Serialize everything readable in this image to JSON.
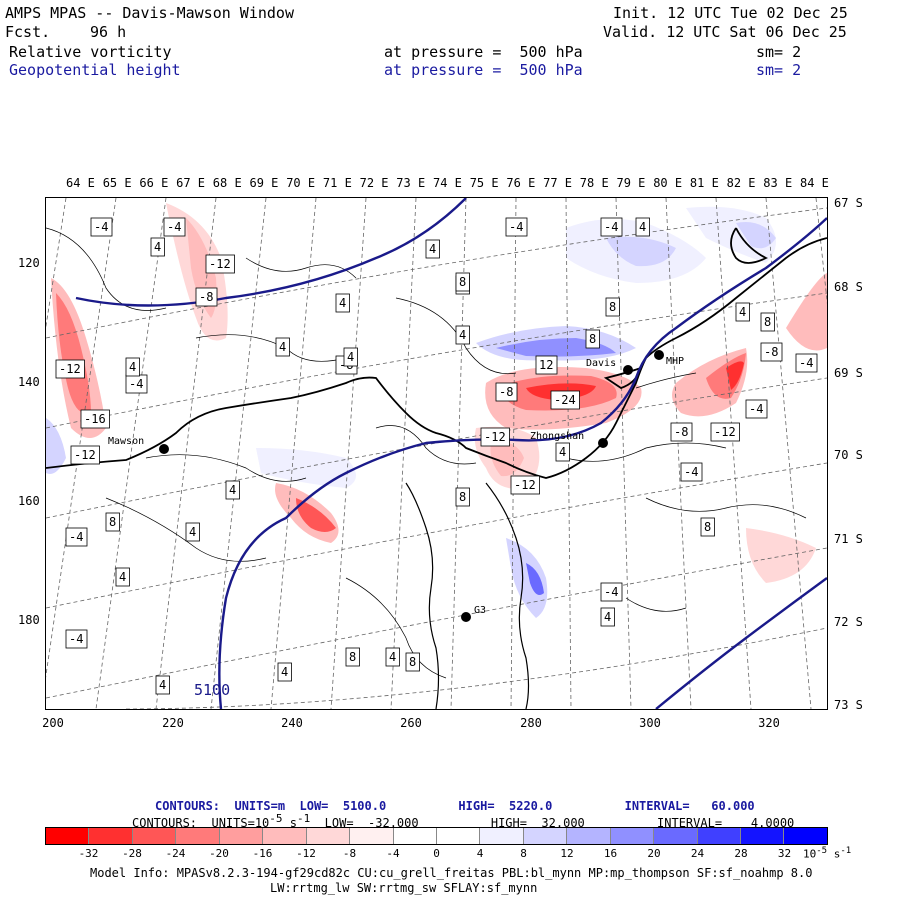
{
  "header": {
    "title": "AMPS MPAS -- Davis-Mawson Window",
    "fcst_label": "Fcst.",
    "fcst_value": "96 h",
    "init": "Init. 12 UTC Tue 02 Dec 25",
    "valid": "Valid. 12 UTC Sat 06 Dec 25",
    "field1": "Relative vorticity",
    "field1_level": "at pressure =  500 hPa",
    "field1_sm": "sm= 2",
    "field2": "Geopotential height",
    "field2_level": "at pressure =  500 hPa",
    "field2_sm": "sm= 2"
  },
  "map": {
    "lon_labels": [
      "64 E",
      "65 E",
      "66 E",
      "67 E",
      "68 E",
      "69 E",
      "70 E",
      "71 E",
      "72 E",
      "73 E",
      "74 E",
      "75 E",
      "76 E",
      "77 E",
      "78 E",
      "79 E",
      "80 E",
      "81 E",
      "82 E",
      "83 E",
      "84 E"
    ],
    "lat_labels": [
      "67 S",
      "68 S",
      "69 S",
      "70 S",
      "71 S",
      "72 S",
      "73 S"
    ],
    "x_ticks": [
      "200",
      "220",
      "240",
      "260",
      "280",
      "300",
      "320"
    ],
    "y_ticks": [
      "120",
      "140",
      "160",
      "180"
    ],
    "stations": [
      "Mawson",
      "Davis",
      "Zhongshan",
      "MHP",
      "G3"
    ],
    "height_label": "5100",
    "contour_labels": [
      "-4",
      "-4",
      "-12",
      "-8",
      "4",
      "4",
      "-4",
      "-8",
      "4",
      "4",
      "-12",
      "-4",
      "-16",
      "-12",
      "4",
      "-4",
      "8",
      "4",
      "4",
      "8",
      "4",
      "8",
      "-4",
      "12",
      "-8",
      "-24",
      "8",
      "-12",
      "-12",
      "-8",
      "-12",
      "-4",
      "-8",
      "-4",
      "8",
      "4",
      "-4",
      "4",
      "4",
      "8",
      "8",
      "8",
      "4",
      "4",
      "4",
      "-4",
      "4",
      "-4",
      "4",
      "8",
      "4",
      "4"
    ]
  },
  "legend": {
    "contours1": "CONTOURS:  UNITS=m  LOW=  5100.0          HIGH=  5220.0          INTERVAL=   60.000",
    "contours2_a": "CONTOURS:  UNITS=10",
    "contours2_exp": "-5",
    "contours2_b": " s",
    "contours2_exp2": "-1",
    "contours2_c": "  LOW=  -32.000          HIGH=  32.000          INTERVAL=    4.0000",
    "colorbar_labels": [
      "-32",
      "-28",
      "-24",
      "-20",
      "-16",
      "-12",
      "-8",
      "-4",
      "0",
      "4",
      "8",
      "12",
      "16",
      "20",
      "24",
      "28",
      "32"
    ],
    "colorbar_unit": "10",
    "colorbar_unit_exp": "-5",
    "colorbar_unit_b": " s",
    "colorbar_unit_exp2": "-1",
    "colorbar_colors": [
      "#ff0000",
      "#ff3030",
      "#ff5656",
      "#ff7a7a",
      "#ff9e9e",
      "#ffbcbc",
      "#ffd8d8",
      "#fff0f0",
      "#ffffff",
      "#ffffff",
      "#f0f0ff",
      "#d4d4ff",
      "#b4b4ff",
      "#9090ff",
      "#6a6aff",
      "#4040ff",
      "#1414ff",
      "#0000ff"
    ]
  },
  "footer": {
    "model_info": "Model Info: MPASv8.2.3-194-gf29cd82c CU:cu_grell_freitas PBL:bl_mynn MP:mp_thompson SF:sf_noahmp 8.0",
    "model_info2": "LW:rrtmg_lw SW:rrtmg_sw SFLAY:sf_mynn"
  }
}
